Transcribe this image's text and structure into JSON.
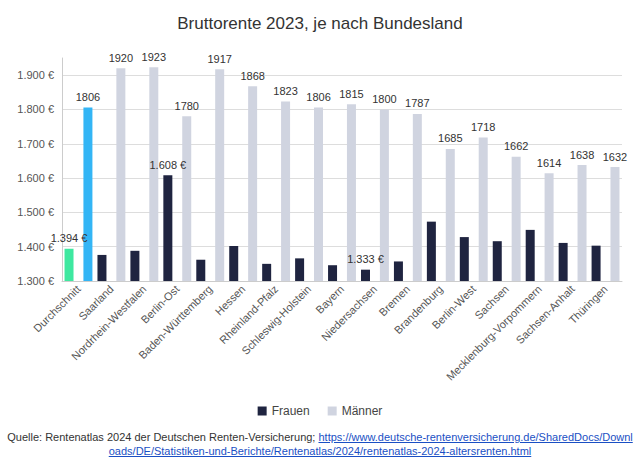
{
  "chart_data": {
    "type": "bar",
    "title": "Bruttorente 2023, je nach Bundesland",
    "categories": [
      "Durchschnitt",
      "Saarland",
      "Nordrhein-Westfalen",
      "Berlin-Ost",
      "Baden-Württemberg",
      "Hessen",
      "Rheinland-Pfalz",
      "Schleswig-Holstein",
      "Bayern",
      "Niedersachsen",
      "Bremen",
      "Brandenburg",
      "Berlin-West",
      "Sachsen",
      "Mecklenburg-Vorpommern",
      "Sachsen-Anhalt",
      "Thüringen"
    ],
    "series": [
      {
        "name": "Frauen",
        "color": "#1f2440",
        "colors": [
          "#3ee8a0",
          "#1f2440",
          "#1f2440",
          "#1f2440",
          "#1f2440",
          "#1f2440",
          "#1f2440",
          "#1f2440",
          "#1f2440",
          "#1f2440",
          "#1f2440",
          "#1f2440",
          "#1f2440",
          "#1f2440",
          "#1f2440",
          "#1f2440",
          "#1f2440"
        ],
        "values": [
          1394,
          1376,
          1388,
          1608,
          1362,
          1402,
          1350,
          1366,
          1346,
          1333,
          1357,
          1473,
          1428,
          1416,
          1449,
          1411,
          1403
        ],
        "value_labels": [
          "1.394 €",
          null,
          null,
          "1.608 €",
          null,
          null,
          null,
          null,
          null,
          "1.333 €",
          null,
          null,
          null,
          null,
          null,
          null,
          null
        ]
      },
      {
        "name": "Männer",
        "color": "#d0d4e0",
        "colors": [
          "#33b5f5",
          "#d0d4e0",
          "#d0d4e0",
          "#d0d4e0",
          "#d0d4e0",
          "#d0d4e0",
          "#d0d4e0",
          "#d0d4e0",
          "#d0d4e0",
          "#d0d4e0",
          "#d0d4e0",
          "#d0d4e0",
          "#d0d4e0",
          "#d0d4e0",
          "#d0d4e0",
          "#d0d4e0",
          "#d0d4e0"
        ],
        "values": [
          1806,
          1920,
          1923,
          1780,
          1917,
          1868,
          1823,
          1806,
          1815,
          1800,
          1787,
          1685,
          1718,
          1662,
          1614,
          1638,
          1632
        ]
      }
    ],
    "ylim": [
      1300,
      1950
    ],
    "yticks": [
      {
        "value": 1300,
        "label": "1.300 €"
      },
      {
        "value": 1400,
        "label": "1.400 €"
      },
      {
        "value": 1500,
        "label": "1.500 €"
      },
      {
        "value": 1600,
        "label": "1.600 €"
      },
      {
        "value": 1700,
        "label": "1.700 €"
      },
      {
        "value": 1800,
        "label": "1.800 €"
      },
      {
        "value": 1900,
        "label": "1.900 €"
      }
    ],
    "grid": true,
    "legend": "bottom",
    "data_labels": true,
    "source_text": "Quelle: Rentenatlas 2024 der Deutschen Renten-Versicherung; ",
    "source_url": "https://www.deutsche-rentenversicherung.de/SharedDocs/Downloads/DE/Statistiken-und-Berichte/Rentenatlas/2024/rentenatlas-2024-altersrenten.html"
  }
}
